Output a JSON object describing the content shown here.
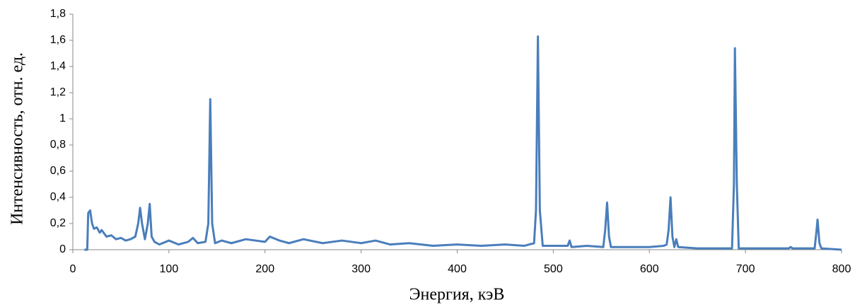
{
  "chart_data": {
    "type": "line",
    "xlabel": "Энергия, кэВ",
    "ylabel": "Интенсивность, отн. ед.",
    "color": "#4a7ebb",
    "xlim": [
      0,
      800
    ],
    "xticks": [
      0,
      100,
      200,
      300,
      400,
      500,
      600,
      700,
      800
    ],
    "ylim": [
      0,
      1.8
    ],
    "yticks": [
      0,
      {
        "value": 0.2,
        "label": "0,2"
      },
      {
        "value": 0.4,
        "label": "0,4"
      },
      {
        "value": 0.6,
        "label": "0,6"
      },
      {
        "value": 0.8,
        "label": "0,8"
      },
      1,
      {
        "value": 1.2,
        "label": "1,2"
      },
      {
        "value": 1.4,
        "label": "1,4"
      },
      {
        "value": 1.6,
        "label": "1,6"
      },
      {
        "value": 1.8,
        "label": "1,8"
      }
    ],
    "x": [
      12,
      15,
      16,
      18,
      20,
      22,
      25,
      28,
      30,
      35,
      40,
      45,
      50,
      55,
      60,
      65,
      68,
      70,
      72,
      75,
      78,
      80,
      82,
      85,
      90,
      100,
      110,
      120,
      125,
      130,
      138,
      141,
      143,
      145,
      148,
      155,
      165,
      180,
      200,
      205,
      215,
      225,
      240,
      260,
      280,
      300,
      315,
      330,
      350,
      375,
      400,
      425,
      450,
      470,
      480,
      482,
      484,
      486,
      489,
      500,
      515,
      517,
      519,
      535,
      552,
      554,
      556,
      558,
      560,
      580,
      600,
      615,
      618,
      620,
      622,
      624,
      626,
      628,
      630,
      650,
      670,
      686,
      688,
      689,
      691,
      693,
      720,
      745,
      747,
      749,
      772,
      774,
      775,
      777,
      779,
      800
    ],
    "values": [
      0,
      0,
      0.28,
      0.3,
      0.2,
      0.16,
      0.17,
      0.13,
      0.15,
      0.1,
      0.11,
      0.08,
      0.09,
      0.07,
      0.08,
      0.1,
      0.2,
      0.32,
      0.2,
      0.08,
      0.2,
      0.35,
      0.1,
      0.06,
      0.04,
      0.07,
      0.04,
      0.06,
      0.09,
      0.05,
      0.06,
      0.2,
      1.15,
      0.2,
      0.05,
      0.07,
      0.05,
      0.08,
      0.06,
      0.1,
      0.07,
      0.05,
      0.08,
      0.05,
      0.07,
      0.05,
      0.07,
      0.04,
      0.05,
      0.03,
      0.04,
      0.03,
      0.04,
      0.03,
      0.05,
      0.3,
      1.63,
      0.3,
      0.03,
      0.03,
      0.03,
      0.07,
      0.02,
      0.03,
      0.02,
      0.15,
      0.36,
      0.1,
      0.02,
      0.02,
      0.02,
      0.03,
      0.04,
      0.15,
      0.4,
      0.1,
      0.02,
      0.08,
      0.02,
      0.01,
      0.01,
      0.01,
      0.5,
      1.54,
      0.5,
      0.01,
      0.01,
      0.01,
      0.02,
      0.01,
      0.01,
      0.15,
      0.23,
      0.05,
      0.01,
      0
    ]
  }
}
